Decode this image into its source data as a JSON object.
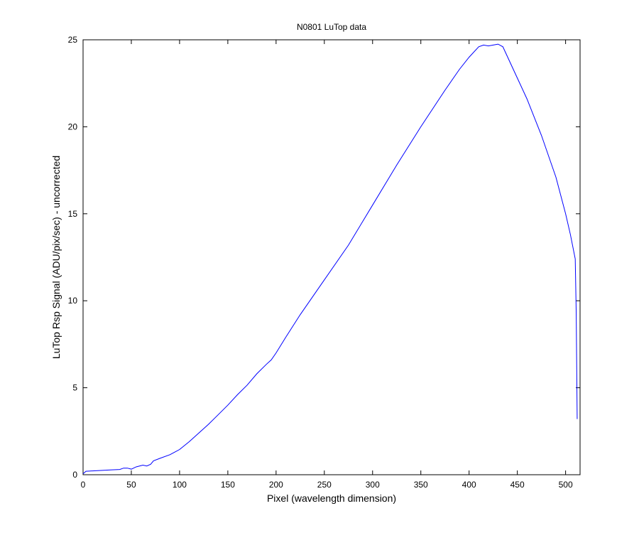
{
  "chart_data": {
    "type": "line",
    "title": "N0801   LuTop data",
    "x_label": "Pixel (wavelength dimension)",
    "y_label": "LuTop Rsp Signal (ADU/pix/sec) - uncorrected",
    "x": [
      0,
      3,
      10,
      20,
      30,
      38,
      42,
      46,
      50,
      55,
      62,
      66,
      70,
      73,
      80,
      90,
      100,
      110,
      120,
      130,
      140,
      150,
      160,
      170,
      180,
      190,
      195,
      200,
      210,
      225,
      250,
      275,
      300,
      325,
      350,
      375,
      390,
      400,
      410,
      415,
      420,
      425,
      430,
      435,
      440,
      450,
      460,
      475,
      490,
      500,
      505,
      510,
      511,
      512
    ],
    "series": [
      {
        "color": "#0000ff",
        "values": [
          0.05,
          0.2,
          0.22,
          0.25,
          0.28,
          0.3,
          0.38,
          0.38,
          0.32,
          0.45,
          0.55,
          0.5,
          0.6,
          0.8,
          0.95,
          1.15,
          1.45,
          1.9,
          2.4,
          2.9,
          3.45,
          4.0,
          4.6,
          5.15,
          5.8,
          6.35,
          6.6,
          7.0,
          7.9,
          9.2,
          11.2,
          13.2,
          15.5,
          17.8,
          20.0,
          22.1,
          23.3,
          24.0,
          24.6,
          24.7,
          24.65,
          24.7,
          24.75,
          24.6,
          24.0,
          22.8,
          21.6,
          19.5,
          17.1,
          15.0,
          13.8,
          12.4,
          9.3,
          3.2
        ]
      }
    ],
    "xlim": [
      0,
      515
    ],
    "xticks": [
      0,
      50,
      100,
      150,
      200,
      250,
      300,
      350,
      400,
      450,
      500
    ],
    "ylim": [
      0,
      25
    ],
    "yticks": [
      0,
      5,
      10,
      15,
      20,
      25
    ],
    "grid": false
  }
}
